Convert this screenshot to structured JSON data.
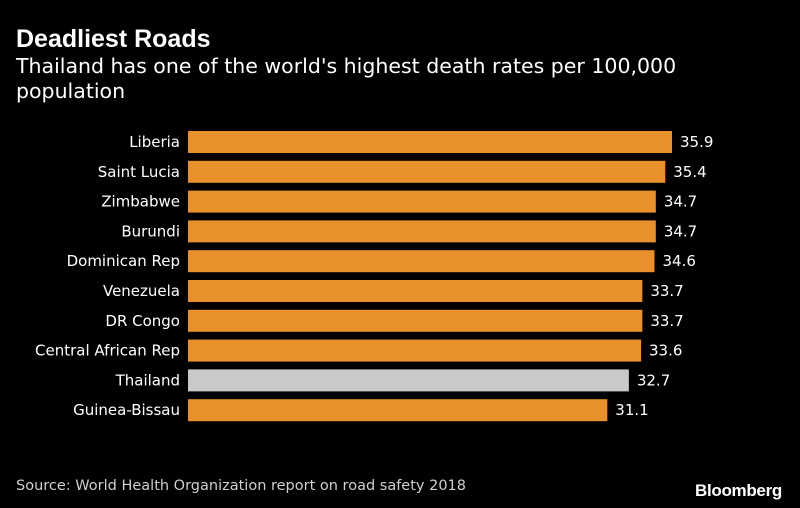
{
  "title": "Deadliest Roads",
  "subtitle": "Thailand has one of the world's highest death rates per 100,000 population",
  "source": "Source: World Health Organization report on road safety 2018",
  "logo": "Bloomberg",
  "colors": {
    "background": "#000000",
    "bar": "#e8902c",
    "highlight": "#c9c9c9",
    "text": "#ffffff"
  },
  "chart_data": {
    "type": "bar",
    "orientation": "horizontal",
    "categories": [
      "Liberia",
      "Saint Lucia",
      "Zimbabwe",
      "Burundi",
      "Dominican Rep",
      "Venezuela",
      "DR Congo",
      "Central African Rep",
      "Thailand",
      "Guinea-Bissau"
    ],
    "values": [
      35.9,
      35.4,
      34.7,
      34.7,
      34.6,
      33.7,
      33.7,
      33.6,
      32.7,
      31.1
    ],
    "value_labels": [
      "35.9",
      "35.4",
      "34.7",
      "34.7",
      "34.6",
      "33.7",
      "33.7",
      "33.6",
      "32.7",
      "31.1"
    ],
    "highlighted": "Thailand",
    "title": "Deadliest Roads",
    "subtitle": "Thailand has one of the world's highest death rates per 100,000 population",
    "xlabel": "",
    "ylabel": "",
    "xlim": [
      0,
      35.9
    ],
    "grid": false,
    "legend": "none"
  }
}
